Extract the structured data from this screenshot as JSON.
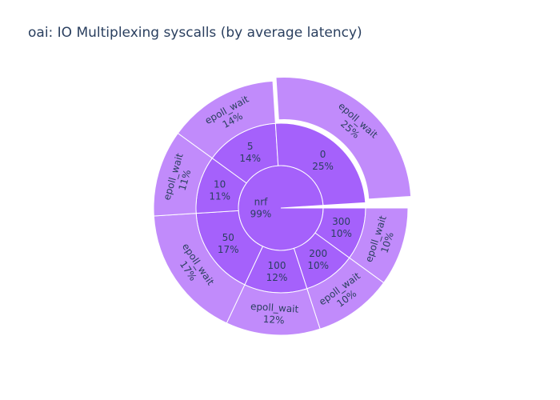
{
  "chart_data": {
    "type": "sunburst",
    "title": "oai: IO Multiplexing syscalls (by average latency)",
    "root": {
      "label": "nrf",
      "percent": "99%",
      "value": 99
    },
    "nodes": [
      {
        "label": "0",
        "percent": "25%",
        "value": 25,
        "child": {
          "label": "epoll_wait",
          "percent": "25%",
          "value": 25
        }
      },
      {
        "label": "300",
        "percent": "10%",
        "value": 10,
        "child": {
          "label": "epoll_wait",
          "percent": "10%",
          "value": 10
        }
      },
      {
        "label": "200",
        "percent": "10%",
        "value": 10,
        "child": {
          "label": "epoll_wait",
          "percent": "10%",
          "value": 10
        }
      },
      {
        "label": "100",
        "percent": "12%",
        "value": 12,
        "child": {
          "label": "epoll_wait",
          "percent": "12%",
          "value": 12
        }
      },
      {
        "label": "50",
        "percent": "17%",
        "value": 17,
        "child": {
          "label": "epoll_wait",
          "percent": "17%",
          "value": 17
        }
      },
      {
        "label": "10",
        "percent": "11%",
        "value": 11,
        "child": {
          "label": "epoll_wait",
          "percent": "11%",
          "value": 11
        }
      },
      {
        "label": "5",
        "percent": "14%",
        "value": 14,
        "child": {
          "label": "epoll_wait",
          "percent": "14%",
          "value": 14
        }
      }
    ],
    "colors": {
      "root": "#a561fb",
      "middle": "#a561fb",
      "outer": "#c18bfb",
      "border": "#ffffff"
    }
  }
}
